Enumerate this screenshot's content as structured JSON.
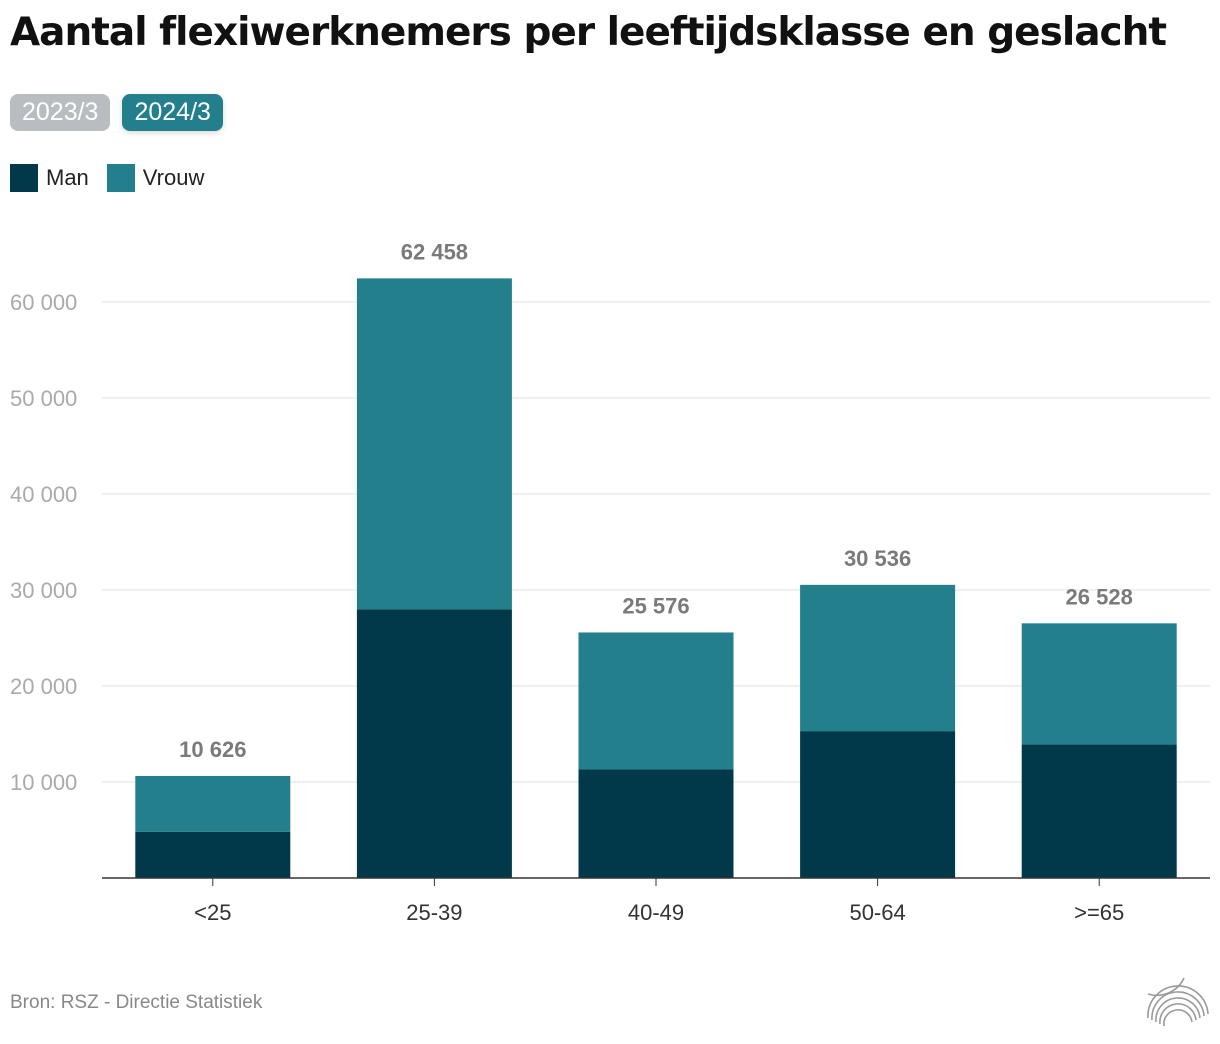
{
  "title": "Aantal flexiwerknemers per leeftijdsklasse en geslacht",
  "toggles": [
    {
      "label": "2023/3",
      "active": false
    },
    {
      "label": "2024/3",
      "active": true
    }
  ],
  "source": "Bron: RSZ - Directie Statistiek",
  "colors": {
    "man": "#02394a",
    "vrouw": "#237f8c",
    "grid": "#e2e2e2",
    "axis": "#333333",
    "tick": "#aaaaaa",
    "total": "#7a7a7a"
  },
  "chart_data": {
    "type": "bar",
    "stacked": true,
    "categories": [
      "<25",
      "25-39",
      "40-49",
      "50-64",
      ">=65"
    ],
    "series": [
      {
        "name": "Man",
        "values": [
          4800,
          28000,
          11300,
          15300,
          13900
        ]
      },
      {
        "name": "Vrouw",
        "values": [
          5826,
          34458,
          14276,
          15236,
          12628
        ]
      }
    ],
    "totals": [
      "10 626",
      "62 458",
      "25 576",
      "30 536",
      "26 528"
    ],
    "totalValues": [
      10626,
      62458,
      25576,
      30536,
      26528
    ],
    "yticks": [
      10000,
      20000,
      30000,
      40000,
      50000,
      60000
    ],
    "ytickLabels": [
      "10 000",
      "20 000",
      "30 000",
      "40 000",
      "50 000",
      "60 000"
    ],
    "ylim": [
      0,
      60000
    ],
    "grid": true,
    "legend": "top-left"
  }
}
